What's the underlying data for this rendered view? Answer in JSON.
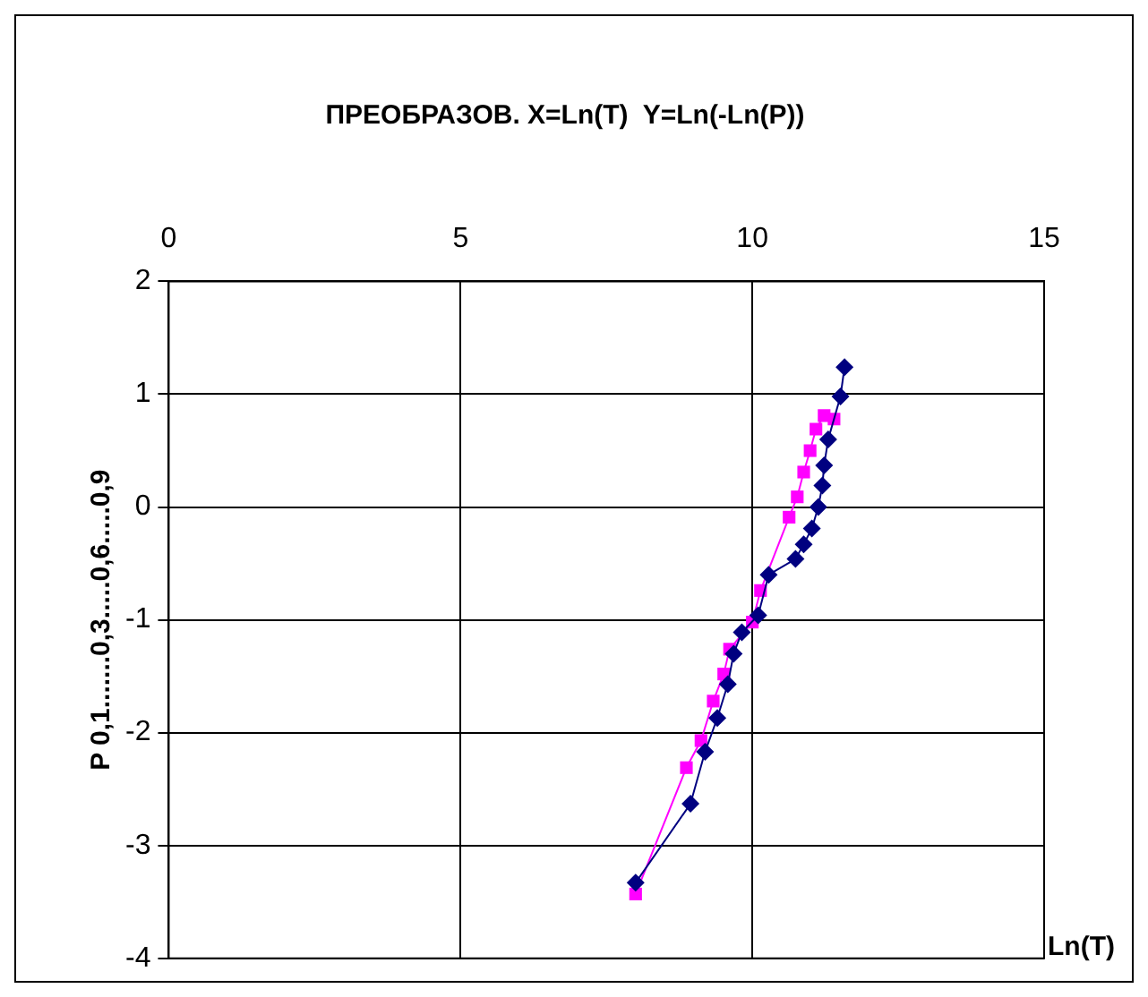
{
  "chart_data": {
    "type": "line",
    "title": "ПРЕОБРАЗОВ. X=Ln(T)  Y=Ln(-Ln(P))",
    "xlabel": "Ln(T)",
    "ylabel": "P 0,1.......0,3.....0,6.....0,9",
    "series": [
      {
        "color": "#000080",
        "marker": "diamond",
        "x": [
          8.0,
          8.94,
          9.19,
          9.4,
          9.58,
          9.68,
          9.82,
          10.1,
          10.28,
          10.74,
          10.88,
          11.02,
          11.13,
          11.2,
          11.23,
          11.3,
          11.51,
          11.58
        ],
        "values": [
          -3.33,
          -2.63,
          -2.17,
          -1.87,
          -1.57,
          -1.3,
          -1.11,
          -0.96,
          -0.6,
          -0.46,
          -0.33,
          -0.19,
          0,
          0.19,
          0.37,
          0.6,
          0.98,
          1.24
        ]
      },
      {
        "color": "#ff00ff",
        "marker": "square",
        "x": [
          8.0,
          8.87,
          9.12,
          9.33,
          9.51,
          9.61,
          10.0,
          10.14,
          10.63,
          10.77,
          10.88,
          10.99,
          11.09,
          11.23,
          11.4
        ],
        "values": [
          -3.43,
          -2.31,
          -2.07,
          -1.72,
          -1.48,
          -1.26,
          -1.02,
          -0.74,
          -0.09,
          0.09,
          0.31,
          0.5,
          0.69,
          0.81,
          0.78
        ]
      }
    ],
    "xlim": [
      0,
      15
    ],
    "xticks": [
      0,
      5,
      10,
      15
    ],
    "ylim": [
      -4,
      2
    ],
    "yticks": [
      -4,
      -3,
      -2,
      -1,
      0,
      1,
      2
    ],
    "grid": true,
    "legend": false
  }
}
